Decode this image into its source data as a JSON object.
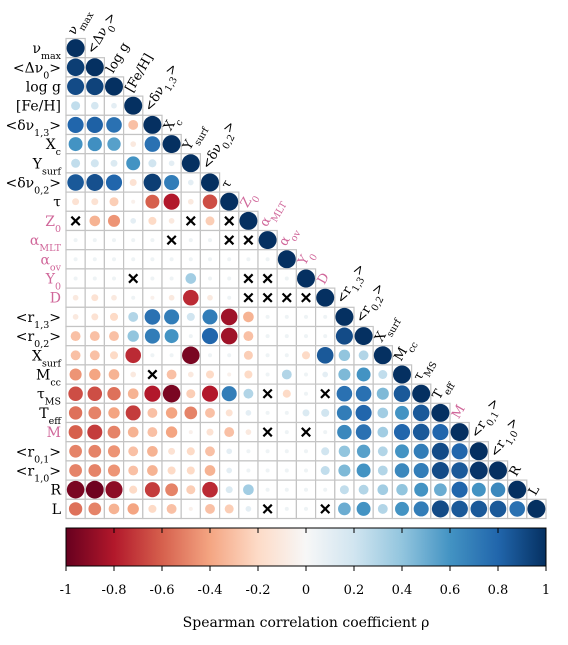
{
  "chart_data": {
    "type": "heatmap",
    "subtype": "correlogram-lower-triangle",
    "variables": [
      "ν_max",
      "<Δν_0>",
      "log g",
      "[Fe/H]",
      "<δν_1,3>",
      "X_c",
      "Y_surf",
      "<δν_0,2>",
      "τ",
      "Z_0",
      "α_MLT",
      "α_ov",
      "Y_0",
      "D",
      "<r_1,3>",
      "<r_0,2>",
      "X_surf",
      "M_cc",
      "τ_MS",
      "T_eff",
      "M",
      "<r_0,1>",
      "<r_1,0>",
      "R",
      "L"
    ],
    "highlighted_variables": [
      "Z_0",
      "α_MLT",
      "α_ov",
      "Y_0",
      "D",
      "M"
    ],
    "highlight_color": "#d0679a",
    "colorbar": {
      "label": "Spearman correlation coefficient ρ",
      "range": [
        -1,
        1
      ],
      "ticks": [
        "-1",
        "-0.8",
        "-0.6",
        "-0.4",
        "-0.2",
        "0",
        "0.2",
        "0.4",
        "0.6",
        "0.8",
        "1"
      ]
    },
    "cross_marker_meaning": "non-significant",
    "grid": true,
    "matrix": [
      [
        1
      ],
      [
        0.95,
        1
      ],
      [
        0.9,
        0.93,
        1
      ],
      [
        0.25,
        0.18,
        0.1,
        1
      ],
      [
        0.8,
        0.82,
        0.75,
        -0.3,
        1
      ],
      [
        0.6,
        0.62,
        0.55,
        -0.1,
        0.75,
        1
      ],
      [
        0.25,
        0.2,
        0.15,
        0.6,
        0.2,
        0.1,
        1
      ],
      [
        0.85,
        0.88,
        0.8,
        -0.15,
        0.95,
        0.7,
        0.1,
        1
      ],
      [
        -0.15,
        -0.15,
        -0.25,
        -0.05,
        -0.6,
        -0.8,
        -0.1,
        -0.65,
        1
      ],
      [
        "x",
        -0.35,
        -0.45,
        0.1,
        -0.2,
        -0.1,
        "x",
        -0.25,
        "x",
        1
      ],
      [
        0.05,
        0.05,
        0.05,
        0.05,
        0.05,
        "x",
        0.05,
        0.05,
        "x",
        "x",
        1
      ],
      [
        0.05,
        0.05,
        0.05,
        0.05,
        0.05,
        0.05,
        0.05,
        0.05,
        0.05,
        0.05,
        0.05,
        1
      ],
      [
        0.05,
        0.05,
        0.05,
        "x",
        0.05,
        0.05,
        0.35,
        0.05,
        0.05,
        "x",
        "x",
        0.05,
        1
      ],
      [
        -0.1,
        -0.15,
        -0.1,
        0.05,
        -0.05,
        -0.1,
        -0.75,
        -0.1,
        0.05,
        "x",
        "x",
        "x",
        "x",
        1
      ],
      [
        -0.1,
        -0.15,
        -0.2,
        0.3,
        0.75,
        0.7,
        0.2,
        0.7,
        -0.85,
        -0.35,
        0.05,
        0.05,
        0.05,
        0.05,
        1
      ],
      [
        -0.3,
        -0.3,
        -0.3,
        0.4,
        0.7,
        0.6,
        0.05,
        0.8,
        -0.85,
        -0.3,
        0.05,
        0.05,
        0.05,
        0.05,
        0.9,
        1
      ],
      [
        -0.3,
        -0.3,
        -0.2,
        -0.75,
        0.05,
        0.05,
        -0.95,
        0.05,
        0.05,
        -0.25,
        0.05,
        0.05,
        -0.2,
        0.85,
        0.4,
        0.3,
        1
      ],
      [
        -0.45,
        -0.4,
        -0.35,
        -0.1,
        "x",
        -0.3,
        -0.1,
        -0.2,
        -0.05,
        -0.2,
        0.05,
        0.3,
        0.05,
        0.1,
        0.45,
        0.6,
        0.25,
        1
      ],
      [
        -0.65,
        -0.65,
        -0.55,
        -0.35,
        -0.8,
        -0.95,
        -0.25,
        -0.8,
        0.7,
        0.3,
        "x",
        -0.2,
        0.05,
        "x",
        0.75,
        0.75,
        0.45,
        0.85,
        1
      ],
      [
        -0.55,
        -0.5,
        -0.4,
        -0.7,
        -0.3,
        -0.4,
        -0.5,
        -0.3,
        -0.15,
        0.1,
        0.05,
        0.05,
        0.15,
        0.2,
        0.7,
        0.8,
        0.35,
        0.6,
        0.85,
        1
      ],
      [
        -0.6,
        -0.7,
        -0.5,
        -0.35,
        -0.3,
        -0.4,
        -0.05,
        -0.15,
        -0.3,
        -0.1,
        "x",
        0.05,
        "x",
        0.05,
        0.65,
        0.75,
        0.35,
        0.8,
        0.85,
        0.8,
        1
      ],
      [
        -0.5,
        -0.5,
        -0.45,
        -0.3,
        -0.35,
        -0.15,
        -0.2,
        -0.3,
        0.1,
        0.05,
        0.05,
        0.05,
        0.05,
        0.2,
        0.4,
        0.55,
        0.3,
        0.6,
        0.7,
        0.9,
        0.8,
        1
      ],
      [
        -0.5,
        -0.5,
        -0.45,
        -0.3,
        -0.35,
        -0.2,
        -0.2,
        -0.35,
        0.1,
        0.05,
        0.05,
        0.05,
        0.05,
        0.25,
        0.45,
        0.6,
        0.3,
        0.65,
        0.7,
        0.9,
        0.85,
        0.98,
        1
      ],
      [
        -0.95,
        -0.98,
        -0.9,
        -0.2,
        -0.7,
        -0.5,
        -0.25,
        -0.75,
        0.15,
        0.35,
        0.05,
        0.05,
        0.05,
        0.05,
        0.25,
        0.3,
        0.35,
        0.4,
        0.6,
        0.5,
        0.8,
        0.6,
        0.65,
        1
      ],
      [
        -0.55,
        -0.5,
        -0.35,
        -0.4,
        -0.2,
        -0.3,
        -0.05,
        -0.3,
        -0.25,
        0.1,
        "x",
        0.05,
        0.05,
        "x",
        0.5,
        0.6,
        0.3,
        0.6,
        0.7,
        0.9,
        0.85,
        0.85,
        0.85,
        0.75,
        1
      ]
    ]
  }
}
